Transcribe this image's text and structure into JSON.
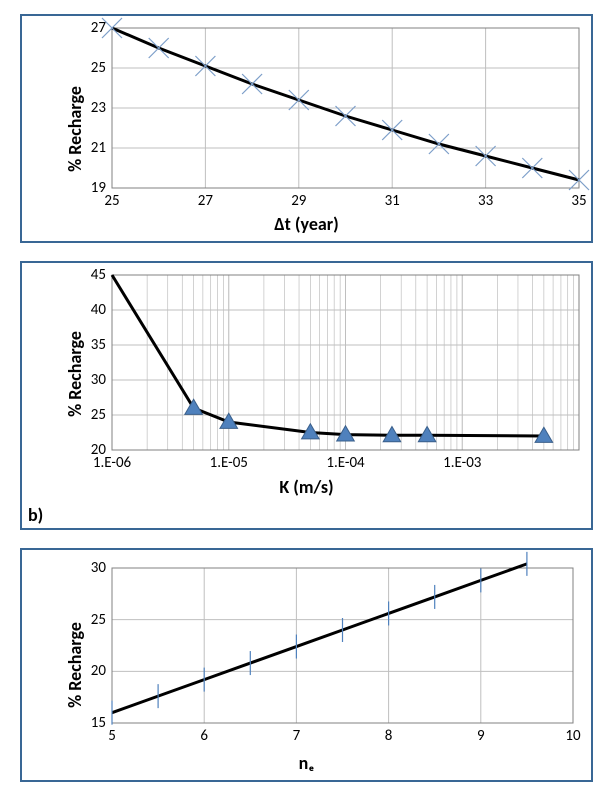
{
  "panel_border_color": "#396795",
  "chart_a": {
    "type": "line+scatter",
    "ylabel": "% Recharge",
    "xlabel": "Δt (year)",
    "xlim": [
      25,
      35
    ],
    "ylim": [
      19,
      27
    ],
    "xticks": [
      25,
      27,
      29,
      31,
      33,
      35
    ],
    "yticks": [
      19,
      21,
      23,
      25,
      27
    ],
    "background_color": "#ffffff",
    "grid_color": "#bfbfbf",
    "axis_color": "#808080",
    "line_color": "#000000",
    "line_width": 3,
    "marker_shape": "x",
    "marker_color": "#7c9ec9",
    "marker_size": 20,
    "marker_stroke": 1.2,
    "font_family": "Calibri",
    "ylabel_fontsize": 18,
    "xlabel_fontsize": 18,
    "tick_fontsize": 15,
    "points": [
      {
        "x": 25,
        "y": 27.0
      },
      {
        "x": 26,
        "y": 26.0
      },
      {
        "x": 27,
        "y": 25.1
      },
      {
        "x": 28,
        "y": 24.2
      },
      {
        "x": 29,
        "y": 23.4
      },
      {
        "x": 30,
        "y": 22.6
      },
      {
        "x": 31,
        "y": 21.9
      },
      {
        "x": 32,
        "y": 21.2
      },
      {
        "x": 33,
        "y": 20.6
      },
      {
        "x": 34,
        "y": 20.0
      },
      {
        "x": 35,
        "y": 19.4
      }
    ]
  },
  "chart_b": {
    "type": "line+scatter",
    "panel_label": "b)",
    "ylabel": "% Recharge",
    "xlabel": "K (m/s)",
    "xscale": "log",
    "xlim": [
      1e-06,
      0.01
    ],
    "ylim": [
      20,
      45
    ],
    "xticks": [
      1e-06,
      1e-05,
      0.0001,
      0.001
    ],
    "xtick_labels": [
      "1.E-06",
      "1.E-05",
      "1.E-04",
      "1.E-03"
    ],
    "yticks": [
      20,
      25,
      30,
      35,
      40,
      45
    ],
    "background_color": "#ffffff",
    "grid_color": "#bfbfbf",
    "axis_color": "#808080",
    "line_color": "#000000",
    "line_width": 3,
    "marker_shape": "triangle",
    "marker_fill": "#4f81bd",
    "marker_stroke": "#3a5f8a",
    "marker_size": 16,
    "font_family": "Calibri",
    "ylabel_fontsize": 18,
    "xlabel_fontsize": 18,
    "tick_fontsize": 15,
    "line_points": [
      {
        "x": 1e-06,
        "y": 45
      },
      {
        "x": 5e-06,
        "y": 26
      },
      {
        "x": 1e-05,
        "y": 24
      },
      {
        "x": 5e-05,
        "y": 22.5
      },
      {
        "x": 0.0001,
        "y": 22.2
      },
      {
        "x": 0.00025,
        "y": 22.1
      },
      {
        "x": 0.0005,
        "y": 22.1
      },
      {
        "x": 0.005,
        "y": 22.0
      }
    ],
    "marker_points": [
      {
        "x": 5e-06,
        "y": 26
      },
      {
        "x": 1e-05,
        "y": 24
      },
      {
        "x": 5e-05,
        "y": 22.5
      },
      {
        "x": 0.0001,
        "y": 22.2
      },
      {
        "x": 0.00025,
        "y": 22.1
      },
      {
        "x": 0.0005,
        "y": 22.1
      },
      {
        "x": 0.005,
        "y": 22.0
      }
    ]
  },
  "chart_c": {
    "type": "line+scatter",
    "ylabel": "% Recharge",
    "xlabel": "nₑ",
    "xlim": [
      5,
      10
    ],
    "ylim": [
      15,
      30
    ],
    "xticks": [
      5,
      6,
      7,
      8,
      9,
      10
    ],
    "yticks": [
      15,
      20,
      25,
      30
    ],
    "background_color": "#ffffff",
    "grid_color": "#bfbfbf",
    "axis_color": "#808080",
    "line_color": "#000000",
    "line_width": 3,
    "marker_shape": "vtick",
    "marker_color": "#4f81bd",
    "marker_size": 24,
    "marker_stroke": 1.2,
    "font_family": "Calibri",
    "ylabel_fontsize": 18,
    "xlabel_fontsize": 18,
    "tick_fontsize": 15,
    "points": [
      {
        "x": 5.0,
        "y": 16.0
      },
      {
        "x": 5.5,
        "y": 17.6
      },
      {
        "x": 6.0,
        "y": 19.2
      },
      {
        "x": 6.5,
        "y": 20.8
      },
      {
        "x": 7.0,
        "y": 22.4
      },
      {
        "x": 7.5,
        "y": 24.0
      },
      {
        "x": 8.0,
        "y": 25.6
      },
      {
        "x": 8.5,
        "y": 27.2
      },
      {
        "x": 9.0,
        "y": 28.8
      },
      {
        "x": 9.5,
        "y": 30.4
      }
    ]
  }
}
